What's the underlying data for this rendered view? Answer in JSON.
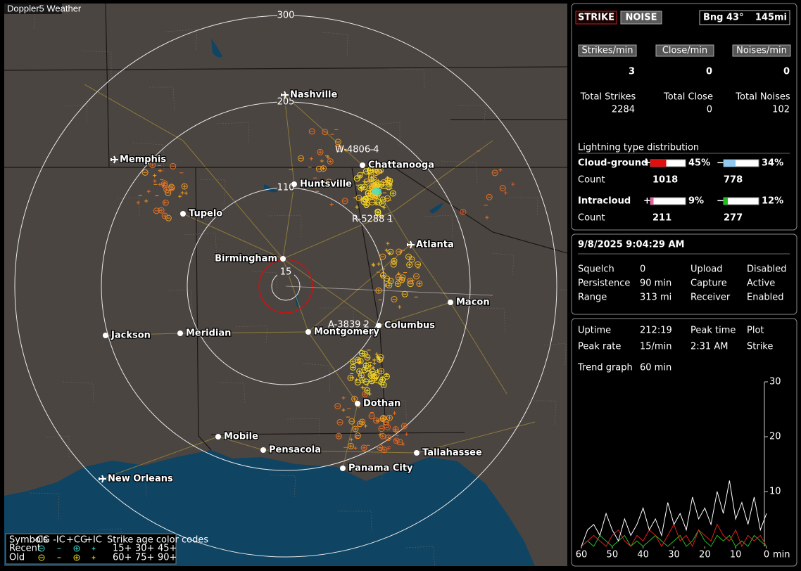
{
  "map": {
    "title": "Doppler5 Weather",
    "ring_labels": [
      "300",
      "205",
      "110",
      "15"
    ],
    "cities": [
      "Nashville",
      "Memphis",
      "Chattanooga",
      "Huntsville",
      "Tupelo",
      "Birmingham",
      "Atlanta",
      "Macon",
      "Jackson",
      "Meridian",
      "Montgomery",
      "Columbus",
      "Dothan",
      "Mobile",
      "Pensacola",
      "Tallahassee",
      "Panama City",
      "New Orleans"
    ],
    "storm_ids": [
      "W-4806 4",
      "R-5288 1",
      "A-3839 2"
    ],
    "legend": {
      "symbols_label": "Symbols",
      "symbols": [
        "-CG",
        "-IC",
        "+CG",
        "+IC"
      ],
      "age_title": "Strike age color codes",
      "rows": [
        {
          "label": "Recent",
          "ages": [
            "15+",
            "30+",
            "45+"
          ]
        },
        {
          "label": "Old",
          "ages": [
            "60+",
            "75+",
            "90+"
          ]
        }
      ]
    }
  },
  "status": {
    "strike_button": "STRIKE",
    "noise_button": "NOISE",
    "bearing": "Bng 43°",
    "distance": "145mi",
    "rates": [
      {
        "label": "Strikes/min",
        "value": 3
      },
      {
        "label": "Close/min",
        "value": 0
      },
      {
        "label": "Noises/min",
        "value": 0
      }
    ],
    "totals": [
      {
        "label": "Total Strikes",
        "value": 2284
      },
      {
        "label": "Total Close",
        "value": 0
      },
      {
        "label": "Total Noises",
        "value": 102
      }
    ],
    "distribution": {
      "title": "Lightning type distribution",
      "count_label": "Count",
      "types": [
        {
          "name": "Cloud-ground",
          "pos": {
            "sign": "+",
            "value": 45,
            "label": "45%",
            "count": 1018
          },
          "neg": {
            "sign": "−",
            "value": 34,
            "label": "34%",
            "count": 778
          }
        },
        {
          "name": "Intracloud",
          "pos": {
            "sign": "+",
            "value": 9,
            "label": "9%",
            "count": 211
          },
          "neg": {
            "sign": "−",
            "value": 12,
            "label": "12%",
            "count": 277
          }
        }
      ]
    }
  },
  "settings": {
    "datetime": "9/8/2025 9:04:29 AM",
    "rows": [
      [
        "Squelch",
        "0",
        "Upload",
        "Disabled"
      ],
      [
        "Persistence",
        "90 min",
        "Capture",
        "Active"
      ],
      [
        "Range",
        "313 mi",
        "Receiver",
        "Enabled"
      ]
    ]
  },
  "stats": {
    "rows": [
      [
        "Uptime",
        "212:19",
        "Peak time",
        "Plot"
      ],
      [
        "Peak rate",
        "15/min",
        "2:31 AM",
        "Strike"
      ]
    ],
    "trend_label": "Trend graph",
    "trend_span": "60 min"
  },
  "trend": {
    "type": "line",
    "xlim": [
      60,
      0
    ],
    "ylim": [
      0,
      30
    ],
    "xticks": [
      60,
      50,
      40,
      30,
      20,
      10,
      0
    ],
    "yticks": [
      10,
      20,
      30
    ],
    "xlabel": "min",
    "x": [
      60,
      58,
      56,
      54,
      52,
      50,
      48,
      46,
      44,
      42,
      40,
      38,
      36,
      34,
      32,
      30,
      28,
      26,
      24,
      22,
      20,
      18,
      16,
      14,
      12,
      10,
      8,
      6,
      4,
      2,
      0
    ],
    "series": [
      {
        "color": "#ffffff",
        "values": [
          0,
          3,
          4,
          2,
          6,
          3,
          1,
          5,
          2,
          4,
          7,
          3,
          5,
          2,
          8,
          4,
          6,
          3,
          9,
          5,
          7,
          4,
          10,
          6,
          12,
          5,
          8,
          4,
          9,
          3,
          6
        ]
      },
      {
        "color": "#e02020",
        "values": [
          0,
          1,
          2,
          1,
          0,
          2,
          3,
          1,
          0,
          2,
          1,
          3,
          2,
          0,
          2,
          4,
          1,
          2,
          0,
          3,
          2,
          1,
          4,
          2,
          1,
          3,
          0,
          2,
          1,
          2,
          0
        ]
      },
      {
        "color": "#20c020",
        "values": [
          0,
          1,
          0,
          2,
          1,
          0,
          1,
          2,
          0,
          1,
          0,
          1,
          2,
          1,
          0,
          1,
          2,
          0,
          1,
          3,
          1,
          0,
          2,
          1,
          2,
          0,
          1,
          0,
          2,
          1,
          0
        ]
      }
    ]
  }
}
